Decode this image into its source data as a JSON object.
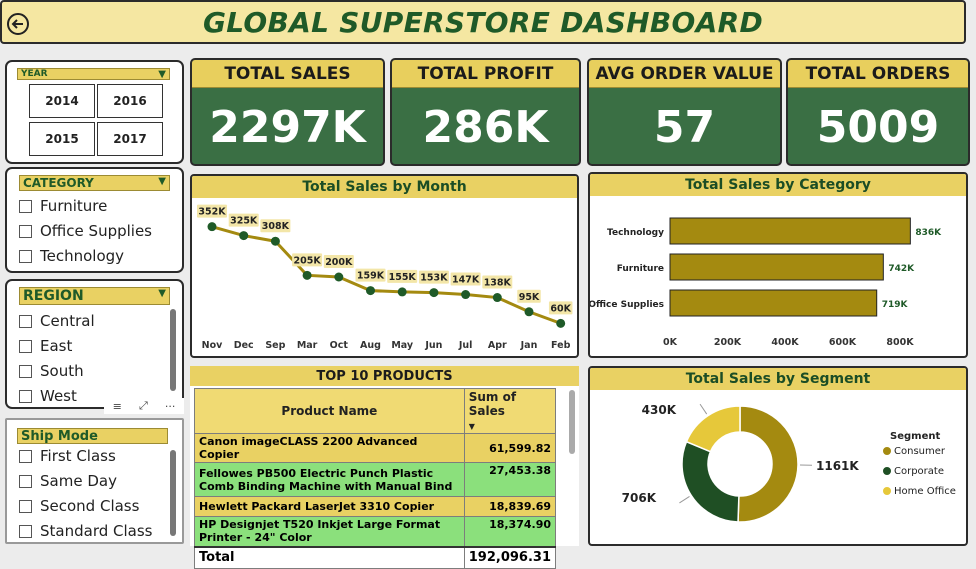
{
  "header": {
    "title": "GLOBAL SUPERSTORE DASHBOARD"
  },
  "kpis": [
    {
      "label": "TOTAL SALES",
      "value": "2297K"
    },
    {
      "label": "TOTAL PROFIT",
      "value": "286K"
    },
    {
      "label": "AVG ORDER VALUE",
      "value": "57"
    },
    {
      "label": "TOTAL ORDERS",
      "value": "5009"
    }
  ],
  "slicers": {
    "year": {
      "title": "YEAR",
      "options": [
        "2014",
        "2016",
        "2015",
        "2017"
      ]
    },
    "category": {
      "title": "CATEGORY",
      "options": [
        "Furniture",
        "Office Supplies",
        "Technology"
      ]
    },
    "region": {
      "title": "REGION",
      "options": [
        "Central",
        "East",
        "South",
        "West"
      ]
    },
    "ship_mode": {
      "title": "Ship Mode",
      "options": [
        "First Class",
        "Same Day",
        "Second Class",
        "Standard Class"
      ]
    }
  },
  "table": {
    "title": "TOP 10 PRODUCTS",
    "headers": [
      "Product Name",
      "Sum of Sales"
    ],
    "rows": [
      {
        "name": "Canon imageCLASS 2200 Advanced Copier",
        "sales": "61,599.82"
      },
      {
        "name": "Fellowes PB500 Electric Punch Plastic Comb Binding Machine with Manual Bind",
        "sales": "27,453.38"
      },
      {
        "name": "Hewlett Packard LaserJet 3310 Copier",
        "sales": "18,839.69"
      },
      {
        "name": "HP Designjet T520 Inkjet Large Format Printer - 24\" Color",
        "sales": "18,374.90"
      }
    ],
    "total_label": "Total",
    "total_value": "192,096.31"
  },
  "chart_data": [
    {
      "type": "line",
      "title": "Total Sales by Month",
      "categories": [
        "Nov",
        "Dec",
        "Sep",
        "Mar",
        "Oct",
        "Aug",
        "May",
        "Jun",
        "Jul",
        "Apr",
        "Jan",
        "Feb"
      ],
      "values": [
        352,
        325,
        308,
        205,
        200,
        159,
        155,
        153,
        147,
        138,
        95,
        60
      ],
      "labels": [
        "352K",
        "325K",
        "308K",
        "205K",
        "200K",
        "159K",
        "155K",
        "153K",
        "147K",
        "138K",
        "95K",
        "60K"
      ],
      "line_color": "#a48a10",
      "marker_color": "#1f5a28"
    },
    {
      "type": "bar",
      "title": "Total Sales by Category",
      "categories": [
        "Technology",
        "Furniture",
        "Office Supplies"
      ],
      "values": [
        836,
        742,
        719
      ],
      "labels": [
        "836K",
        "742K",
        "719K"
      ],
      "xticks": [
        "0K",
        "200K",
        "400K",
        "600K",
        "800K"
      ],
      "xlim": [
        0,
        800
      ],
      "bar_color": "#a48a10"
    },
    {
      "type": "pie",
      "title": "Total Sales by Segment",
      "legend_title": "Segment",
      "categories": [
        "Consumer",
        "Corporate",
        "Home Office"
      ],
      "values": [
        1161,
        706,
        430
      ],
      "labels": [
        "1161K",
        "706K",
        "430K"
      ],
      "colors": [
        "#a48a10",
        "#1f4f24",
        "#e6c83a"
      ]
    }
  ]
}
